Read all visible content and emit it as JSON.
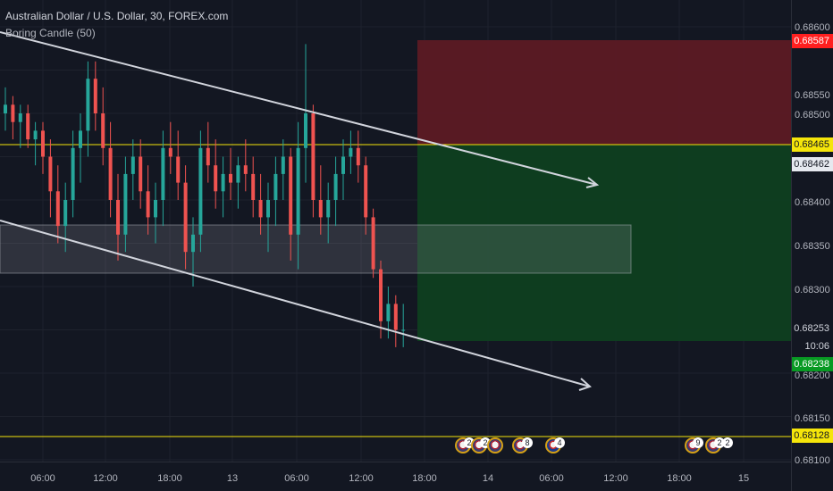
{
  "header": {
    "title": "Australian Dollar / U.S. Dollar, 30, FOREX.com",
    "indicator": "Boring Candle (50)"
  },
  "price_axis": {
    "labels": [
      "0.68600",
      "0.68550",
      "0.68500",
      "0.68400",
      "0.68350",
      "0.68300",
      "0.68200",
      "0.68150",
      "0.68100"
    ],
    "badges": [
      {
        "text": "0.68587",
        "bg": "#ff1f1f",
        "fg": "#ffffff"
      },
      {
        "text": "0.68465",
        "bg": "#f5e50a",
        "fg": "#131722"
      },
      {
        "text": "0.68462",
        "bg": "#e6e9ef",
        "fg": "#131722"
      },
      {
        "text": "0.68253",
        "bg": "#131722",
        "fg": "#d1d4dc"
      },
      {
        "text": "10:06",
        "bg": "#131722",
        "fg": "#d1d4dc"
      },
      {
        "text": "0.68238",
        "bg": "#089a23",
        "fg": "#ffffff"
      },
      {
        "text": "0.68128",
        "bg": "#f5e50a",
        "fg": "#131722"
      }
    ]
  },
  "time_axis": {
    "labels": [
      "06:00",
      "12:00",
      "18:00",
      "13",
      "06:00",
      "12:00",
      "18:00",
      "14",
      "06:00",
      "12:00",
      "18:00",
      "15"
    ]
  },
  "events": {
    "counts": [
      "2",
      "2",
      "8",
      "4",
      "9",
      "2",
      "2"
    ]
  },
  "colors": {
    "background": "#131722",
    "up": "#26a69a",
    "down": "#ef5350",
    "yellow_line": "#f5e50a",
    "stop_zone": "#5c1a24",
    "target_zone": "#0e3f20"
  },
  "chart_data": {
    "type": "candlestick",
    "symbol": "AUDUSD",
    "timeframe": "30",
    "ylim": [
      0.681,
      0.686
    ],
    "horizontal_lines": [
      0.68465,
      0.68128
    ],
    "candles": [
      [
        0.685,
        0.6853,
        0.6848,
        0.6851
      ],
      [
        0.6851,
        0.6852,
        0.6847,
        0.6849
      ],
      [
        0.6849,
        0.6851,
        0.6846,
        0.685
      ],
      [
        0.685,
        0.6851,
        0.6846,
        0.6847
      ],
      [
        0.6847,
        0.6849,
        0.6844,
        0.6848
      ],
      [
        0.6848,
        0.6849,
        0.6843,
        0.6845
      ],
      [
        0.6845,
        0.6847,
        0.6838,
        0.6841
      ],
      [
        0.6841,
        0.6844,
        0.6835,
        0.6837
      ],
      [
        0.6837,
        0.6842,
        0.6834,
        0.684
      ],
      [
        0.684,
        0.6848,
        0.6838,
        0.6846
      ],
      [
        0.6846,
        0.685,
        0.6842,
        0.6848
      ],
      [
        0.6848,
        0.6856,
        0.6845,
        0.6854
      ],
      [
        0.6854,
        0.6856,
        0.6848,
        0.685
      ],
      [
        0.685,
        0.6853,
        0.6844,
        0.6846
      ],
      [
        0.6846,
        0.6849,
        0.6838,
        0.684
      ],
      [
        0.684,
        0.6843,
        0.6833,
        0.6836
      ],
      [
        0.6836,
        0.6845,
        0.6834,
        0.6843
      ],
      [
        0.6843,
        0.6847,
        0.684,
        0.6845
      ],
      [
        0.6845,
        0.6847,
        0.6839,
        0.6841
      ],
      [
        0.6841,
        0.6844,
        0.6836,
        0.6838
      ],
      [
        0.6838,
        0.6842,
        0.6835,
        0.684
      ],
      [
        0.684,
        0.6848,
        0.6837,
        0.6846
      ],
      [
        0.6846,
        0.6849,
        0.6843,
        0.6845
      ],
      [
        0.6845,
        0.6848,
        0.684,
        0.6842
      ],
      [
        0.6842,
        0.6844,
        0.6832,
        0.6834
      ],
      [
        0.6834,
        0.6838,
        0.683,
        0.6836
      ],
      [
        0.6836,
        0.6848,
        0.6834,
        0.6846
      ],
      [
        0.6846,
        0.6849,
        0.6842,
        0.6844
      ],
      [
        0.6844,
        0.6847,
        0.6839,
        0.6841
      ],
      [
        0.6841,
        0.6845,
        0.6838,
        0.6843
      ],
      [
        0.6843,
        0.6846,
        0.684,
        0.6842
      ],
      [
        0.6842,
        0.6845,
        0.6839,
        0.6844
      ],
      [
        0.6844,
        0.6847,
        0.6841,
        0.6843
      ],
      [
        0.6843,
        0.6845,
        0.6838,
        0.684
      ],
      [
        0.684,
        0.6843,
        0.6836,
        0.6838
      ],
      [
        0.6838,
        0.6842,
        0.6834,
        0.684
      ],
      [
        0.684,
        0.6845,
        0.6837,
        0.6843
      ],
      [
        0.6843,
        0.6847,
        0.684,
        0.6845
      ],
      [
        0.6845,
        0.6846,
        0.6833,
        0.6836
      ],
      [
        0.6836,
        0.6849,
        0.6832,
        0.6846
      ],
      [
        0.6846,
        0.6858,
        0.6842,
        0.685
      ],
      [
        0.685,
        0.6851,
        0.6838,
        0.684
      ],
      [
        0.684,
        0.6844,
        0.6836,
        0.6838
      ],
      [
        0.6838,
        0.6842,
        0.6835,
        0.684
      ],
      [
        0.684,
        0.6845,
        0.6837,
        0.6843
      ],
      [
        0.6843,
        0.6847,
        0.684,
        0.6845
      ],
      [
        0.6845,
        0.6848,
        0.6843,
        0.6846
      ],
      [
        0.6846,
        0.6848,
        0.6842,
        0.6844
      ],
      [
        0.6844,
        0.6845,
        0.6836,
        0.6838
      ],
      [
        0.6838,
        0.6839,
        0.6831,
        0.6832
      ],
      [
        0.6832,
        0.6833,
        0.6824,
        0.6826
      ],
      [
        0.6826,
        0.683,
        0.6824,
        0.6828
      ],
      [
        0.6828,
        0.6829,
        0.6823,
        0.6825
      ],
      [
        0.6825,
        0.6828,
        0.6823,
        0.6825
      ]
    ]
  }
}
